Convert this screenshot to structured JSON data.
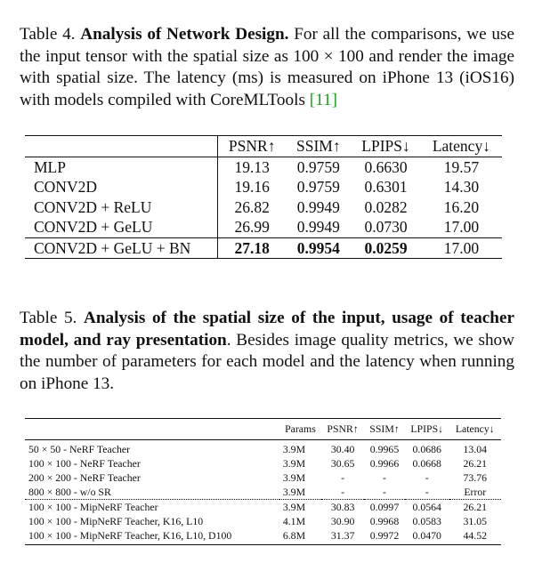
{
  "table4": {
    "caption_prefix": "Table 4. ",
    "caption_bold": "Analysis of Network Design.",
    "caption_body": " For all the comparisons, we use the input tensor with the spatial size as 100 × 100 and render the image with spatial size. The latency (ms) is measured on iPhone 13 (iOS16) with models compiled with CoreMLTools ",
    "caption_cite": "[11]",
    "headers": [
      "",
      "PSNR↑",
      "SSIM↑",
      "LPIPS↓",
      "Latency↓"
    ],
    "rows": [
      [
        "MLP",
        "19.13",
        "0.9759",
        "0.6630",
        "19.57"
      ],
      [
        "CONV2D",
        "19.16",
        "0.9759",
        "0.6301",
        "14.30"
      ],
      [
        "CONV2D + ReLU",
        "26.82",
        "0.9949",
        "0.0282",
        "16.20"
      ],
      [
        "CONV2D + GeLU",
        "26.99",
        "0.9949",
        "0.0730",
        "17.00"
      ],
      [
        "CONV2D + GeLU + BN",
        "27.18",
        "0.9954",
        "0.0259",
        "17.00"
      ]
    ]
  },
  "table5": {
    "caption_prefix": "Table 5. ",
    "caption_bold": "Analysis of the spatial size of the input, usage of teacher model, and ray presentation",
    "caption_body": ". Besides image quality metrics, we show the number of parameters for each model and the latency when running on iPhone 13.",
    "headers": [
      "",
      "Params",
      "PSNR↑",
      "SSIM↑",
      "LPIPS↓",
      "Latency↓"
    ],
    "rows": [
      [
        "50 × 50 - NeRF Teacher",
        "3.9M",
        "30.40",
        "0.9965",
        "0.0686",
        "13.04"
      ],
      [
        "100 × 100 - NeRF Teacher",
        "3.9M",
        "30.65",
        "0.9966",
        "0.0668",
        "26.21"
      ],
      [
        "200 × 200 - NeRF Teacher",
        "3.9M",
        "-",
        "-",
        "-",
        "73.76"
      ],
      [
        "800 × 800 - w/o SR",
        "3.9M",
        "-",
        "-",
        "-",
        "Error"
      ],
      [
        "100 × 100 - MipNeRF Teacher",
        "3.9M",
        "30.83",
        "0.0997",
        "0.0564",
        "26.21"
      ],
      [
        "100 × 100 - MipNeRF Teacher, K16, L10",
        "4.1M",
        "30.90",
        "0.9968",
        "0.0583",
        "31.05"
      ],
      [
        "100 × 100 - MipNeRF Teacher, K16, L10, D100",
        "6.8M",
        "31.37",
        "0.9972",
        "0.0470",
        "44.52"
      ]
    ]
  }
}
